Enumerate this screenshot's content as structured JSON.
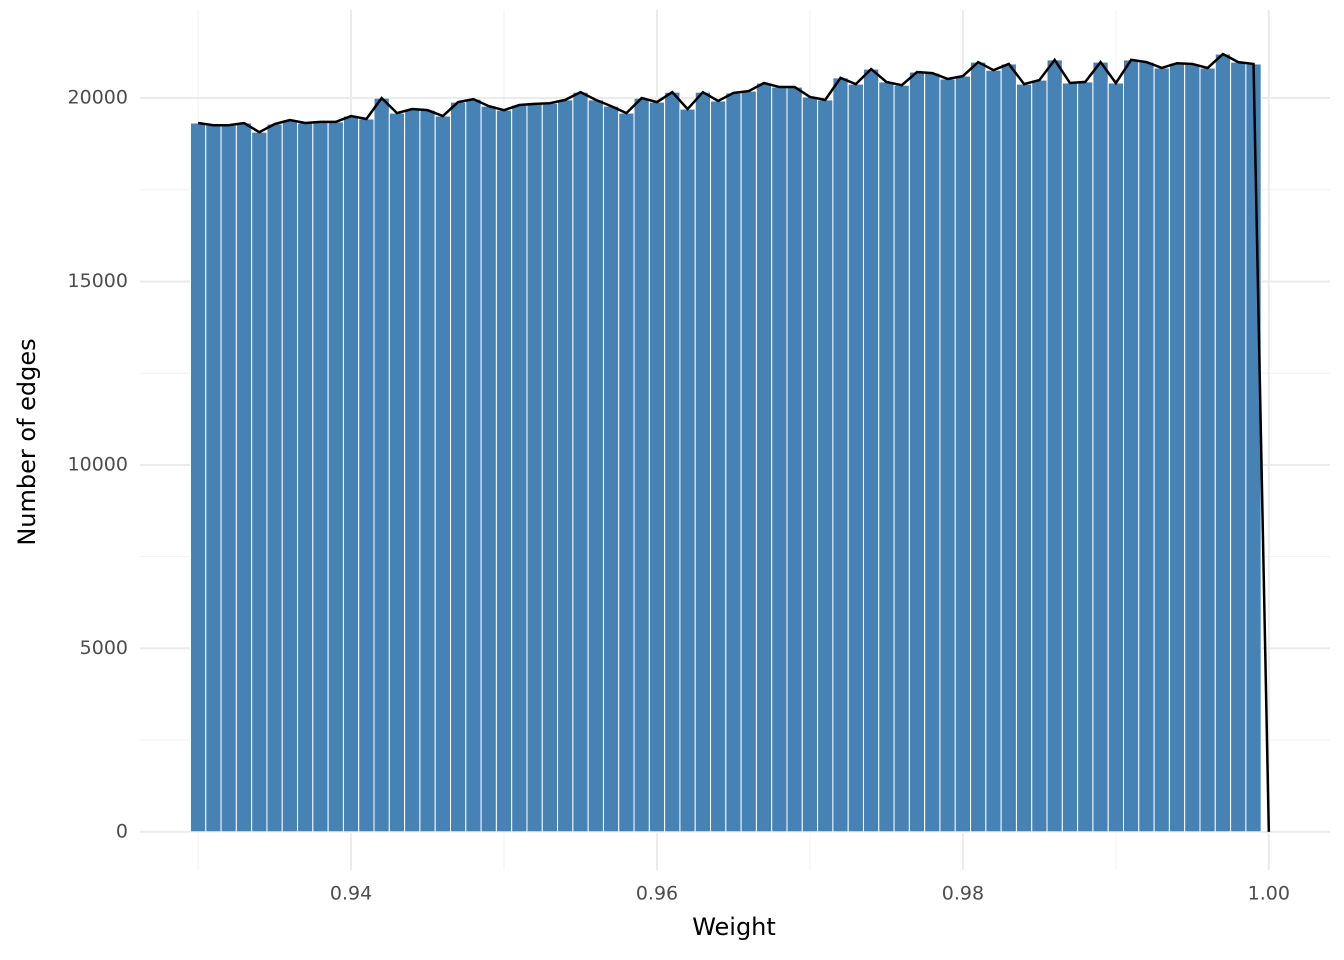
{
  "chart_data": {
    "type": "histogram",
    "xlabel": "Weight",
    "ylabel": "Number of edges",
    "bins": [
      0.9295,
      0.9305,
      0.9315,
      0.9325,
      0.9335,
      0.9345,
      0.9355,
      0.9365,
      0.9375,
      0.9385,
      0.9395,
      0.9405,
      0.9415,
      0.9425,
      0.9435,
      0.9445,
      0.9455,
      0.9465,
      0.9475,
      0.9485,
      0.9495,
      0.9505,
      0.9515,
      0.9525,
      0.9535,
      0.9545,
      0.9555,
      0.9565,
      0.9575,
      0.9585,
      0.9595,
      0.9605,
      0.9615,
      0.9625,
      0.9635,
      0.9645,
      0.9655,
      0.9665,
      0.9675,
      0.9685,
      0.9695,
      0.9705,
      0.9715,
      0.9725,
      0.9735,
      0.9745,
      0.9755,
      0.9765,
      0.9775,
      0.9785,
      0.9795,
      0.9805,
      0.9815,
      0.9825,
      0.9835,
      0.9845,
      0.9855,
      0.9865,
      0.9875,
      0.9885,
      0.9895,
      0.9905,
      0.9915,
      0.9925,
      0.9935,
      0.9945,
      0.9955,
      0.9965,
      0.9975,
      0.9985,
      0.9995
    ],
    "values": [
      19320,
      19260,
      19260,
      19320,
      19070,
      19290,
      19400,
      19320,
      19350,
      19350,
      19510,
      19430,
      20000,
      19590,
      19700,
      19670,
      19510,
      19890,
      19970,
      19780,
      19670,
      19810,
      19840,
      19860,
      19950,
      20160,
      19950,
      19780,
      19590,
      20000,
      19890,
      20160,
      19700,
      20160,
      19920,
      20140,
      20190,
      20410,
      20300,
      20300,
      20030,
      19950,
      20550,
      20380,
      20790,
      20440,
      20350,
      20710,
      20680,
      20520,
      20600,
      20980,
      20760,
      20930,
      20380,
      20490,
      21040,
      20410,
      20440,
      20980,
      20410,
      21040,
      20980,
      20820,
      20950,
      20930,
      20820,
      21200,
      20980,
      20930
    ],
    "color": "#4682b4",
    "line": {
      "color": "#000000",
      "x": [
        0.93,
        0.931,
        0.932,
        0.933,
        0.934,
        0.935,
        0.936,
        0.937,
        0.938,
        0.939,
        0.94,
        0.941,
        0.942,
        0.943,
        0.944,
        0.945,
        0.946,
        0.947,
        0.948,
        0.949,
        0.95,
        0.951,
        0.952,
        0.953,
        0.954,
        0.955,
        0.956,
        0.957,
        0.958,
        0.959,
        0.96,
        0.961,
        0.962,
        0.963,
        0.964,
        0.965,
        0.966,
        0.967,
        0.968,
        0.969,
        0.97,
        0.971,
        0.972,
        0.973,
        0.974,
        0.975,
        0.976,
        0.977,
        0.978,
        0.979,
        0.98,
        0.981,
        0.982,
        0.983,
        0.984,
        0.985,
        0.986,
        0.987,
        0.988,
        0.989,
        0.99,
        0.991,
        0.992,
        0.993,
        0.994,
        0.995,
        0.996,
        0.997,
        0.998,
        0.999,
        1.0
      ],
      "values": [
        19320,
        19260,
        19260,
        19320,
        19070,
        19290,
        19400,
        19320,
        19350,
        19350,
        19510,
        19430,
        20000,
        19590,
        19700,
        19670,
        19510,
        19890,
        19970,
        19780,
        19670,
        19810,
        19840,
        19860,
        19950,
        20160,
        19950,
        19780,
        19590,
        20000,
        19890,
        20160,
        19700,
        20160,
        19920,
        20140,
        20190,
        20410,
        20300,
        20300,
        20030,
        19950,
        20550,
        20380,
        20790,
        20440,
        20350,
        20710,
        20680,
        20520,
        20600,
        20980,
        20760,
        20930,
        20380,
        20490,
        21040,
        20410,
        20440,
        20980,
        20410,
        21040,
        20980,
        20820,
        20950,
        20930,
        20820,
        21200,
        20980,
        20930,
        0
      ]
    },
    "xlim": [
      0.9262,
      1.004
    ],
    "ylim": [
      -1040,
      22400
    ],
    "xticks": [
      0.94,
      0.96,
      0.98,
      {
        "value": 1.0,
        "label": "1.00"
      }
    ],
    "yticks": [
      0,
      5000,
      10000,
      15000,
      20000
    ],
    "minor_xticks": [
      0.93,
      0.95,
      0.97,
      0.99
    ],
    "minor_yticks": [
      2500,
      7500,
      12500,
      17500
    ],
    "grid": true
  }
}
